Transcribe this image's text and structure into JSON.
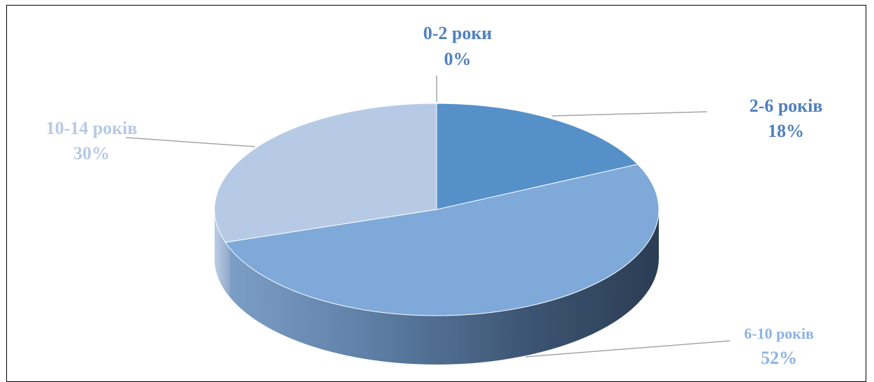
{
  "chart_data": {
    "type": "pie",
    "style": "3d",
    "title": "",
    "legend": "none",
    "slices": [
      {
        "label": "0-2 роки",
        "value": 0,
        "value_label": "0%",
        "color": "#4f81bd"
      },
      {
        "label": "2-6 років",
        "value": 18,
        "value_label": "18%",
        "color": "#5590c9"
      },
      {
        "label": "6-10 років",
        "value": 52,
        "value_label": "52%",
        "color": "#7ea9d8"
      },
      {
        "label": "10-14 років",
        "value": 30,
        "value_label": "30%",
        "color": "#b7cae5"
      }
    ]
  }
}
